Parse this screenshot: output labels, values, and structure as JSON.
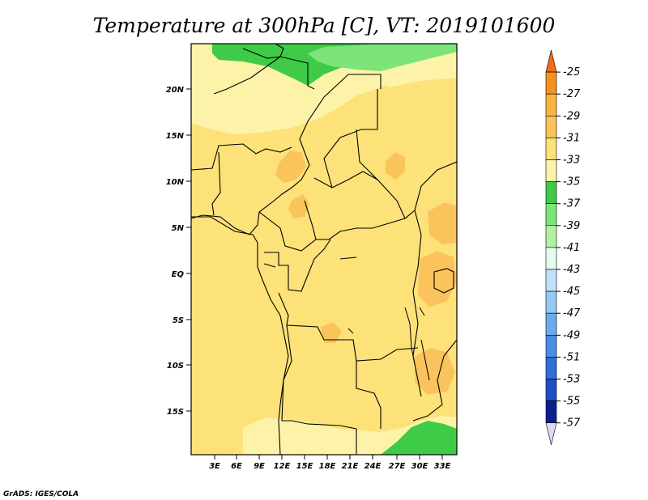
{
  "title": "Temperature at 300hPa [C], VT: 2019101600",
  "credit": "GrADS: IGES/COLA",
  "map": {
    "lon_ticks": [
      "3E",
      "6E",
      "9E",
      "12E",
      "15E",
      "18E",
      "21E",
      "24E",
      "27E",
      "30E",
      "33E"
    ],
    "lat_ticks": [
      "20N",
      "15N",
      "10N",
      "5N",
      "EQ",
      "5S",
      "10S",
      "15S"
    ],
    "colors": {
      "c33": "#fde27a",
      "c35": "#fdf3a8",
      "c31": "#fbc35b",
      "c37": "#3fca48",
      "c39": "#7ce479",
      "border": "#000000"
    }
  },
  "colorbar": {
    "labels": [
      "-25",
      "-27",
      "-29",
      "-31",
      "-33",
      "-35",
      "-37",
      "-39",
      "-41",
      "-43",
      "-45",
      "-47",
      "-49",
      "-51",
      "-53",
      "-55",
      "-57"
    ],
    "colors": [
      "#f06c1a",
      "#f69320",
      "#fbb43d",
      "#fbc35b",
      "#fde27a",
      "#fdf3a8",
      "#3fca48",
      "#7ce479",
      "#b2f1a4",
      "#e6fbef",
      "#bfe3f8",
      "#92c9f5",
      "#6aacec",
      "#4a8de6",
      "#2e6ed8",
      "#1b4fc2",
      "#0a1f8e",
      "#dcdcf4"
    ]
  }
}
